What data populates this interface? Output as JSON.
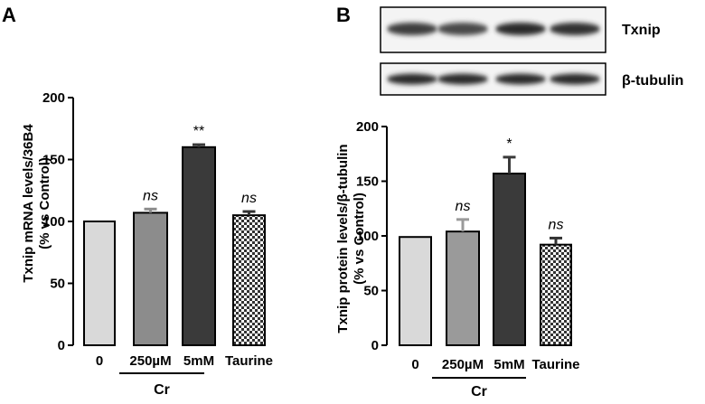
{
  "chart_data": [
    {
      "type": "bar",
      "panel": "A",
      "categories": [
        "0",
        "250µM",
        "5mM",
        "Taurine"
      ],
      "values": [
        100,
        107,
        160,
        105
      ],
      "errors": [
        0,
        3,
        2,
        3
      ],
      "significance": [
        "",
        "ns",
        "**",
        "ns"
      ],
      "group_label": "Cr",
      "ylabel_line1": "Txnip mRNA levels/36B4",
      "ylabel_line2": "(% vs Control)",
      "ylim": [
        0,
        200
      ],
      "yticks": [
        "0",
        "50",
        "100",
        "150",
        "200"
      ],
      "colors": [
        "#d9d9d9",
        "#8c8c8c",
        "#3a3a3a",
        "checker"
      ]
    },
    {
      "type": "bar",
      "panel": "B",
      "categories": [
        "0",
        "250µM",
        "5mM",
        "Taurine"
      ],
      "values": [
        99,
        104,
        157,
        92
      ],
      "errors": [
        0,
        11,
        15,
        6
      ],
      "significance": [
        "",
        "ns",
        "*",
        "ns"
      ],
      "group_label": "Cr",
      "ylabel_line1": "Txnip protein levels/β-tubulin",
      "ylabel_line2": "(% vs Control)",
      "ylim": [
        0,
        200
      ],
      "yticks": [
        "0",
        "50",
        "100",
        "150",
        "200"
      ],
      "colors": [
        "#d9d9d9",
        "#9a9a9a",
        "#3a3a3a",
        "checker"
      ],
      "blots": [
        {
          "label": "Txnip",
          "intensities": [
            0.75,
            0.65,
            0.9,
            0.85
          ]
        },
        {
          "label": "β-tubulin",
          "intensities": [
            0.9,
            0.9,
            0.9,
            0.9
          ]
        }
      ]
    }
  ]
}
